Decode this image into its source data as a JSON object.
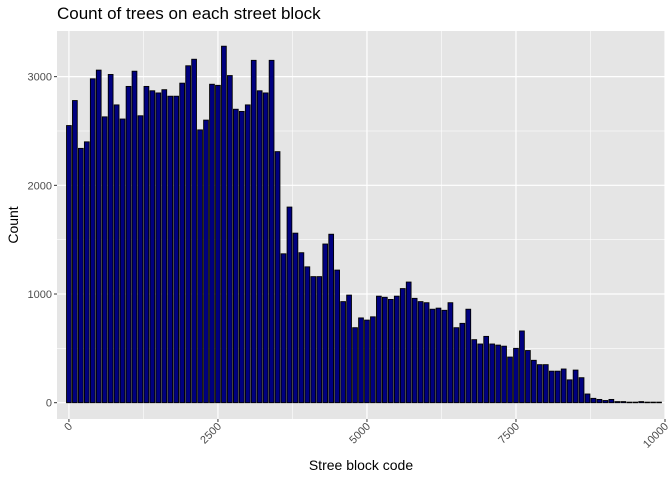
{
  "chart_data": {
    "type": "bar",
    "title": "Count of trees on each street block",
    "xlabel": "Stree block code",
    "ylabel": "Count",
    "xlim": [
      -200,
      10000
    ],
    "ylim": [
      -150,
      3420
    ],
    "x_ticks": [
      0,
      2500,
      5000,
      7500,
      10000
    ],
    "x_tick_labels": [
      "0",
      "2500",
      "5000",
      "7500",
      "10000"
    ],
    "y_ticks": [
      0,
      1000,
      2000,
      3000
    ],
    "y_tick_labels": [
      "0",
      "1000",
      "2000",
      "3000"
    ],
    "bin_width": 100,
    "x": [
      0,
      100,
      200,
      300,
      400,
      500,
      600,
      700,
      800,
      900,
      1000,
      1100,
      1200,
      1300,
      1400,
      1500,
      1600,
      1700,
      1800,
      1900,
      2000,
      2100,
      2200,
      2300,
      2400,
      2500,
      2600,
      2700,
      2800,
      2900,
      3000,
      3100,
      3200,
      3300,
      3400,
      3500,
      3600,
      3700,
      3800,
      3900,
      4000,
      4100,
      4200,
      4300,
      4400,
      4500,
      4600,
      4700,
      4800,
      4900,
      5000,
      5100,
      5200,
      5300,
      5400,
      5500,
      5600,
      5700,
      5800,
      5900,
      6000,
      6100,
      6200,
      6300,
      6400,
      6500,
      6600,
      6700,
      6800,
      6900,
      7000,
      7100,
      7200,
      7300,
      7400,
      7500,
      7600,
      7700,
      7800,
      7900,
      8000,
      8100,
      8200,
      8300,
      8400,
      8500,
      8600,
      8700,
      8800,
      8900,
      9000,
      9100,
      9200,
      9300,
      9400,
      9500,
      9600,
      9700,
      9800,
      9900
    ],
    "values": [
      2550,
      2780,
      2340,
      2400,
      2980,
      3060,
      2630,
      3020,
      2740,
      2610,
      2910,
      3050,
      2640,
      2910,
      2870,
      2850,
      2880,
      2820,
      2820,
      2940,
      3100,
      3160,
      2510,
      2600,
      2930,
      2920,
      3280,
      3010,
      2700,
      2680,
      2740,
      3150,
      2870,
      2850,
      3150,
      2310,
      1370,
      1800,
      1560,
      1380,
      1250,
      1160,
      1160,
      1460,
      1550,
      1220,
      930,
      990,
      690,
      780,
      760,
      790,
      980,
      970,
      950,
      980,
      1050,
      1110,
      960,
      930,
      920,
      860,
      870,
      850,
      920,
      690,
      730,
      860,
      580,
      540,
      610,
      540,
      530,
      520,
      420,
      500,
      660,
      480,
      390,
      350,
      350,
      290,
      290,
      310,
      210,
      300,
      230,
      80,
      40,
      30,
      20,
      30,
      10,
      10,
      5,
      5,
      10,
      5,
      5,
      5
    ],
    "bar_fill": "#000080",
    "bar_outline": "#000000",
    "panel_background": "#e5e5e5",
    "grid": true,
    "grid_color": "#ffffff",
    "legend": "none"
  }
}
